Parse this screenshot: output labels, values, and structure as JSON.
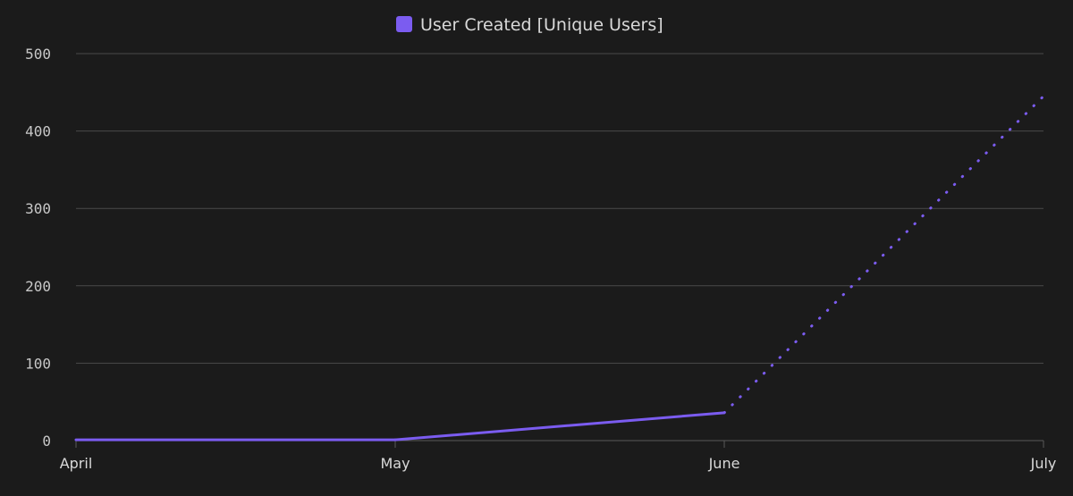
{
  "colors": {
    "background": "#1b1b1b",
    "series": "#7b5cf0",
    "grid": "#4a4a4a",
    "text": "#d9d9d9"
  },
  "chart_data": {
    "type": "line",
    "title": "",
    "xlabel": "",
    "ylabel": "",
    "legend_position": "top-center",
    "grid": true,
    "ylim": [
      0,
      500
    ],
    "y_ticks": [
      "0",
      "100",
      "200",
      "300",
      "400",
      "500"
    ],
    "categories": [
      "April",
      "May",
      "June",
      "July"
    ],
    "series": [
      {
        "name": "User Created [Unique Users]",
        "color": "#7b5cf0",
        "values": [
          1,
          1,
          36,
          445
        ],
        "line_style": [
          "solid",
          "solid",
          "dotted"
        ]
      }
    ]
  }
}
